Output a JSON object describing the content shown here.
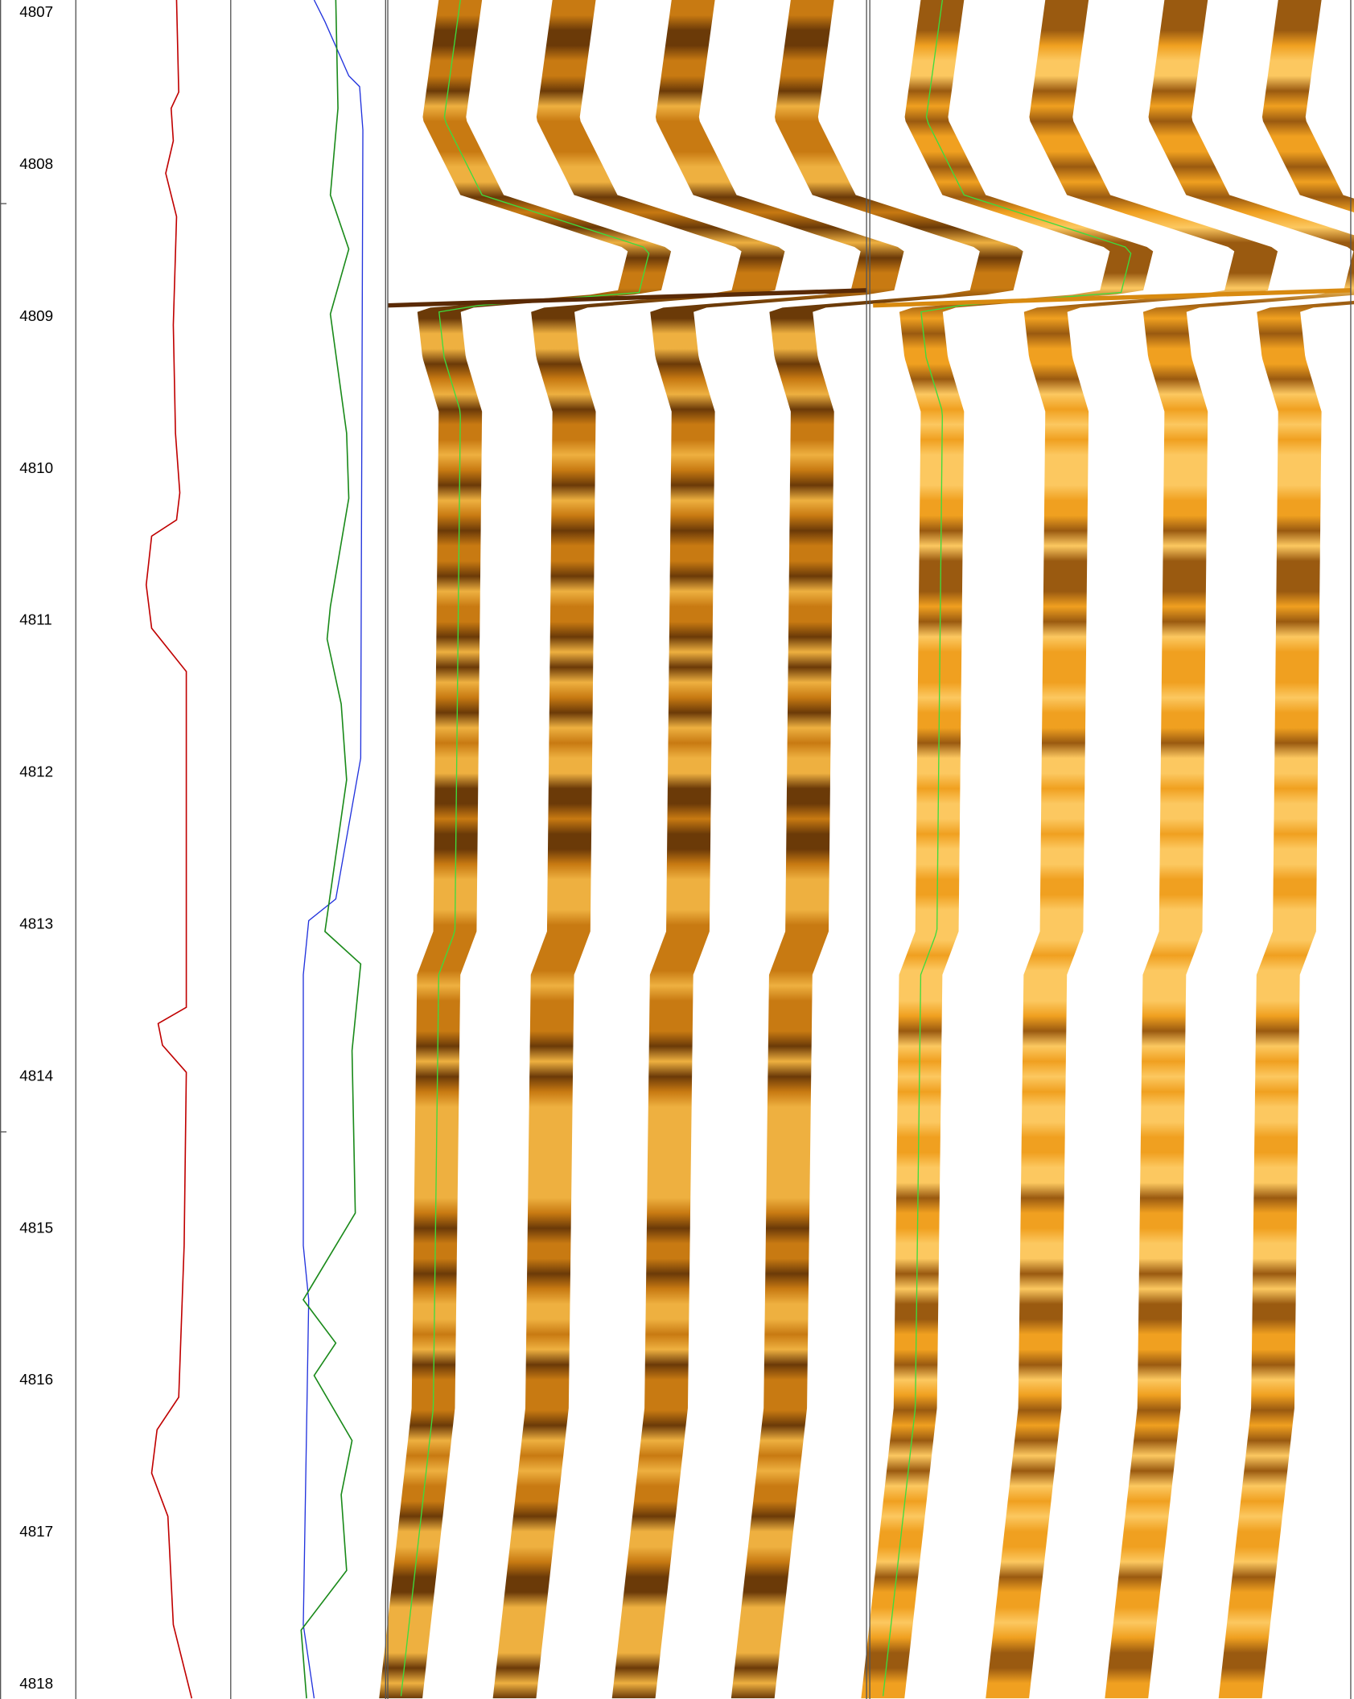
{
  "depth_labels": [
    4807,
    4808,
    4809,
    4810,
    4811,
    4812,
    4813,
    4814,
    4815,
    4816,
    4817,
    4818
  ]
}
